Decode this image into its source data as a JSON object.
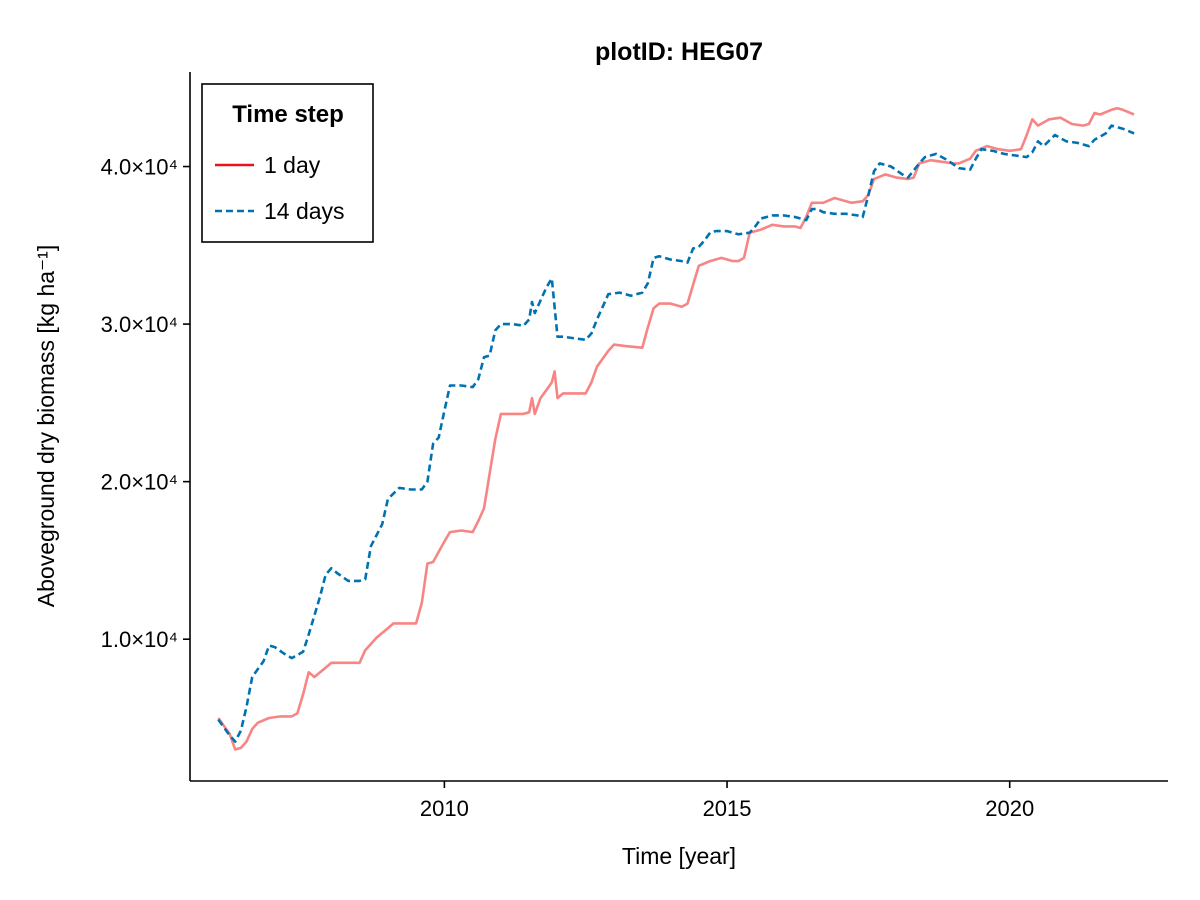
{
  "chart_data": {
    "type": "line",
    "title": "plotID: HEG07",
    "xlabel": "Time [year]",
    "ylabel": "Aboveground dry biomass [kg ha⁻¹]",
    "xlim": [
      2005.5,
      2022.8
    ],
    "ylim": [
      1000,
      46000
    ],
    "x_ticks": [
      2010,
      2015,
      2020
    ],
    "x_tick_labels": [
      "2010",
      "2015",
      "2020"
    ],
    "y_ticks": [
      10000,
      20000,
      30000,
      40000
    ],
    "y_tick_labels": [
      "1.0×10⁴",
      "2.0×10⁴",
      "3.0×10⁴",
      "4.0×10⁴"
    ],
    "grid": false,
    "legend": {
      "title": "Time step",
      "placement": "top-left"
    },
    "series": [
      {
        "name": "1 day",
        "legend_color": "#e8141a",
        "color": "#f78583",
        "dash": "solid",
        "points": [
          [
            2006.0,
            5000
          ],
          [
            2006.2,
            4000
          ],
          [
            2006.3,
            3000
          ],
          [
            2006.4,
            3100
          ],
          [
            2006.5,
            3500
          ],
          [
            2006.6,
            4300
          ],
          [
            2006.7,
            4700
          ],
          [
            2006.9,
            5000
          ],
          [
            2007.1,
            5100
          ],
          [
            2007.3,
            5100
          ],
          [
            2007.4,
            5300
          ],
          [
            2007.5,
            6500
          ],
          [
            2007.6,
            7900
          ],
          [
            2007.7,
            7600
          ],
          [
            2007.9,
            8200
          ],
          [
            2008.0,
            8500
          ],
          [
            2008.2,
            8500
          ],
          [
            2008.5,
            8500
          ],
          [
            2008.6,
            9300
          ],
          [
            2008.8,
            10100
          ],
          [
            2009.0,
            10700
          ],
          [
            2009.1,
            11000
          ],
          [
            2009.3,
            11000
          ],
          [
            2009.5,
            11000
          ],
          [
            2009.6,
            12300
          ],
          [
            2009.7,
            14800
          ],
          [
            2009.8,
            14900
          ],
          [
            2010.0,
            16200
          ],
          [
            2010.1,
            16800
          ],
          [
            2010.3,
            16900
          ],
          [
            2010.5,
            16800
          ],
          [
            2010.6,
            17500
          ],
          [
            2010.7,
            18300
          ],
          [
            2010.8,
            20500
          ],
          [
            2010.9,
            22700
          ],
          [
            2011.0,
            24300
          ],
          [
            2011.2,
            24300
          ],
          [
            2011.4,
            24300
          ],
          [
            2011.5,
            24400
          ],
          [
            2011.55,
            25300
          ],
          [
            2011.6,
            24300
          ],
          [
            2011.7,
            25300
          ],
          [
            2011.8,
            25800
          ],
          [
            2011.9,
            26300
          ],
          [
            2011.95,
            27000
          ],
          [
            2012.0,
            25300
          ],
          [
            2012.1,
            25600
          ],
          [
            2012.3,
            25600
          ],
          [
            2012.5,
            25600
          ],
          [
            2012.6,
            26300
          ],
          [
            2012.7,
            27300
          ],
          [
            2012.9,
            28300
          ],
          [
            2013.0,
            28700
          ],
          [
            2013.2,
            28600
          ],
          [
            2013.5,
            28500
          ],
          [
            2013.6,
            29800
          ],
          [
            2013.7,
            31000
          ],
          [
            2013.8,
            31300
          ],
          [
            2014.0,
            31300
          ],
          [
            2014.2,
            31100
          ],
          [
            2014.3,
            31300
          ],
          [
            2014.4,
            32500
          ],
          [
            2014.5,
            33700
          ],
          [
            2014.7,
            34000
          ],
          [
            2014.9,
            34200
          ],
          [
            2015.1,
            34000
          ],
          [
            2015.2,
            34000
          ],
          [
            2015.3,
            34200
          ],
          [
            2015.4,
            35800
          ],
          [
            2015.6,
            36000
          ],
          [
            2015.8,
            36300
          ],
          [
            2016.0,
            36200
          ],
          [
            2016.2,
            36200
          ],
          [
            2016.3,
            36100
          ],
          [
            2016.4,
            36800
          ],
          [
            2016.5,
            37700
          ],
          [
            2016.7,
            37700
          ],
          [
            2016.9,
            38000
          ],
          [
            2017.2,
            37700
          ],
          [
            2017.4,
            37800
          ],
          [
            2017.5,
            38200
          ],
          [
            2017.6,
            39200
          ],
          [
            2017.8,
            39500
          ],
          [
            2018.0,
            39300
          ],
          [
            2018.2,
            39200
          ],
          [
            2018.3,
            39300
          ],
          [
            2018.4,
            40200
          ],
          [
            2018.6,
            40400
          ],
          [
            2018.8,
            40300
          ],
          [
            2019.0,
            40200
          ],
          [
            2019.1,
            40200
          ],
          [
            2019.3,
            40500
          ],
          [
            2019.4,
            41000
          ],
          [
            2019.6,
            41300
          ],
          [
            2019.8,
            41100
          ],
          [
            2020.0,
            41000
          ],
          [
            2020.2,
            41100
          ],
          [
            2020.3,
            42000
          ],
          [
            2020.4,
            43000
          ],
          [
            2020.5,
            42600
          ],
          [
            2020.7,
            43000
          ],
          [
            2020.9,
            43100
          ],
          [
            2021.1,
            42700
          ],
          [
            2021.3,
            42600
          ],
          [
            2021.4,
            42700
          ],
          [
            2021.5,
            43400
          ],
          [
            2021.6,
            43300
          ],
          [
            2021.8,
            43600
          ],
          [
            2021.9,
            43700
          ],
          [
            2022.0,
            43600
          ],
          [
            2022.2,
            43300
          ]
        ]
      },
      {
        "name": "14 days",
        "legend_color": "#0072b2",
        "color": "#0072b2",
        "dash": "dashed",
        "points": [
          [
            2006.0,
            4900
          ],
          [
            2006.2,
            3900
          ],
          [
            2006.3,
            3500
          ],
          [
            2006.4,
            4200
          ],
          [
            2006.5,
            5700
          ],
          [
            2006.6,
            7600
          ],
          [
            2006.7,
            8100
          ],
          [
            2006.8,
            8600
          ],
          [
            2006.9,
            9600
          ],
          [
            2007.0,
            9500
          ],
          [
            2007.2,
            9000
          ],
          [
            2007.3,
            8800
          ],
          [
            2007.5,
            9200
          ],
          [
            2007.6,
            10300
          ],
          [
            2007.8,
            12700
          ],
          [
            2007.9,
            14100
          ],
          [
            2008.0,
            14500
          ],
          [
            2008.1,
            14200
          ],
          [
            2008.3,
            13700
          ],
          [
            2008.5,
            13700
          ],
          [
            2008.6,
            13800
          ],
          [
            2008.7,
            15900
          ],
          [
            2008.9,
            17300
          ],
          [
            2009.0,
            18900
          ],
          [
            2009.2,
            19600
          ],
          [
            2009.4,
            19500
          ],
          [
            2009.6,
            19500
          ],
          [
            2009.7,
            20000
          ],
          [
            2009.8,
            22400
          ],
          [
            2009.9,
            22800
          ],
          [
            2010.0,
            24500
          ],
          [
            2010.1,
            26100
          ],
          [
            2010.3,
            26100
          ],
          [
            2010.5,
            26000
          ],
          [
            2010.6,
            26500
          ],
          [
            2010.7,
            27900
          ],
          [
            2010.8,
            28000
          ],
          [
            2010.9,
            29600
          ],
          [
            2011.0,
            30000
          ],
          [
            2011.2,
            30000
          ],
          [
            2011.4,
            29900
          ],
          [
            2011.5,
            30300
          ],
          [
            2011.55,
            31400
          ],
          [
            2011.6,
            30700
          ],
          [
            2011.7,
            31500
          ],
          [
            2011.8,
            32300
          ],
          [
            2011.9,
            32900
          ],
          [
            2012.0,
            29200
          ],
          [
            2012.1,
            29200
          ],
          [
            2012.3,
            29100
          ],
          [
            2012.5,
            29000
          ],
          [
            2012.6,
            29400
          ],
          [
            2012.7,
            30300
          ],
          [
            2012.8,
            31100
          ],
          [
            2012.9,
            31900
          ],
          [
            2013.1,
            32000
          ],
          [
            2013.3,
            31800
          ],
          [
            2013.5,
            32000
          ],
          [
            2013.6,
            32600
          ],
          [
            2013.7,
            34200
          ],
          [
            2013.8,
            34300
          ],
          [
            2014.0,
            34100
          ],
          [
            2014.2,
            34000
          ],
          [
            2014.3,
            33900
          ],
          [
            2014.4,
            34800
          ],
          [
            2014.5,
            34900
          ],
          [
            2014.6,
            35300
          ],
          [
            2014.7,
            35800
          ],
          [
            2014.8,
            35900
          ],
          [
            2015.0,
            35900
          ],
          [
            2015.2,
            35700
          ],
          [
            2015.4,
            35800
          ],
          [
            2015.5,
            36200
          ],
          [
            2015.6,
            36700
          ],
          [
            2015.8,
            36900
          ],
          [
            2016.0,
            36900
          ],
          [
            2016.2,
            36800
          ],
          [
            2016.4,
            36600
          ],
          [
            2016.5,
            37300
          ],
          [
            2016.6,
            37300
          ],
          [
            2016.7,
            37100
          ],
          [
            2016.9,
            37000
          ],
          [
            2017.1,
            37000
          ],
          [
            2017.3,
            36900
          ],
          [
            2017.4,
            36800
          ],
          [
            2017.5,
            38200
          ],
          [
            2017.6,
            39700
          ],
          [
            2017.7,
            40200
          ],
          [
            2017.9,
            40000
          ],
          [
            2018.1,
            39500
          ],
          [
            2018.2,
            39300
          ],
          [
            2018.4,
            40200
          ],
          [
            2018.5,
            40600
          ],
          [
            2018.7,
            40800
          ],
          [
            2018.9,
            40400
          ],
          [
            2019.1,
            39900
          ],
          [
            2019.3,
            39800
          ],
          [
            2019.4,
            40500
          ],
          [
            2019.5,
            41100
          ],
          [
            2019.7,
            41000
          ],
          [
            2019.9,
            40800
          ],
          [
            2020.1,
            40700
          ],
          [
            2020.3,
            40600
          ],
          [
            2020.4,
            40900
          ],
          [
            2020.5,
            41600
          ],
          [
            2020.6,
            41300
          ],
          [
            2020.8,
            42000
          ],
          [
            2021.0,
            41600
          ],
          [
            2021.2,
            41500
          ],
          [
            2021.4,
            41300
          ],
          [
            2021.5,
            41700
          ],
          [
            2021.7,
            42100
          ],
          [
            2021.8,
            42600
          ],
          [
            2022.0,
            42400
          ],
          [
            2022.2,
            42100
          ]
        ]
      }
    ]
  }
}
